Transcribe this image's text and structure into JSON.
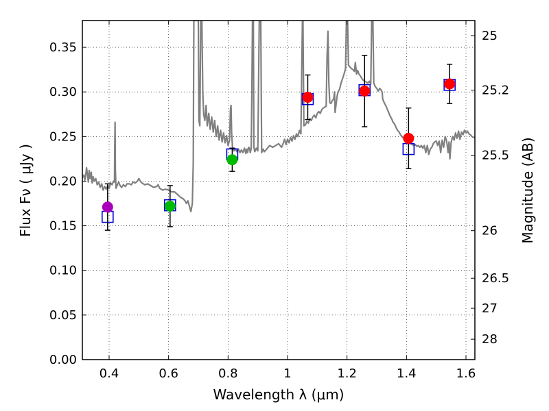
{
  "chart_data": {
    "type": "scatter",
    "xlabel": "Wavelength  λ (μm)",
    "ylabel": "Flux  Fν  ( μJy )",
    "y2label": "Magnitude (AB)",
    "xlim": [
      0.31,
      1.63
    ],
    "ylim": [
      0.0,
      0.38
    ],
    "grid": true,
    "xticks": [
      0.4,
      0.6,
      0.8,
      1.0,
      1.2,
      1.4,
      1.6
    ],
    "xtick_labels": [
      "0.4",
      "0.6",
      "0.8",
      "1",
      "1.2",
      "1.4",
      "1.6"
    ],
    "yticks": [
      0.0,
      0.05,
      0.1,
      0.15,
      0.2,
      0.25,
      0.3,
      0.35
    ],
    "ytick_labels": [
      "0.00",
      "0.05",
      "0.10",
      "0.15",
      "0.20",
      "0.25",
      "0.30",
      "0.35"
    ],
    "mag_ticks": [
      25,
      25.2,
      25.5,
      26,
      26.5,
      27,
      28
    ],
    "mag_tick_labels": [
      "25",
      "25.2",
      "25.5",
      "26",
      "26.5",
      "27",
      "28"
    ],
    "observed": [
      {
        "x": 0.395,
        "y": 0.171,
        "err": 0.026,
        "color": "#aa00bb"
      },
      {
        "x": 0.605,
        "y": 0.172,
        "err": 0.023,
        "color": "#00bb00"
      },
      {
        "x": 0.814,
        "y": 0.224,
        "err": 0.013,
        "color": "#00bb00"
      },
      {
        "x": 1.068,
        "y": 0.294,
        "err": 0.025,
        "color": "#ff0000"
      },
      {
        "x": 1.259,
        "y": 0.301,
        "err": 0.04,
        "color": "#ff0000"
      },
      {
        "x": 1.407,
        "y": 0.248,
        "err": 0.034,
        "color": "#ff0000"
      },
      {
        "x": 1.545,
        "y": 0.309,
        "err": 0.022,
        "color": "#ff0000"
      }
    ],
    "model_photometry": [
      {
        "x": 0.395,
        "y": 0.16
      },
      {
        "x": 0.605,
        "y": 0.173
      },
      {
        "x": 0.814,
        "y": 0.23
      },
      {
        "x": 1.068,
        "y": 0.292
      },
      {
        "x": 1.259,
        "y": 0.302
      },
      {
        "x": 1.407,
        "y": 0.236
      },
      {
        "x": 1.545,
        "y": 0.308
      }
    ],
    "model_spectrum": {
      "color": "#808080",
      "points": [
        [
          0.31,
          0.204
        ],
        [
          0.315,
          0.207
        ],
        [
          0.318,
          0.201
        ],
        [
          0.321,
          0.206
        ],
        [
          0.324,
          0.215
        ],
        [
          0.327,
          0.208
        ],
        [
          0.33,
          0.199
        ],
        [
          0.333,
          0.212
        ],
        [
          0.336,
          0.203
        ],
        [
          0.34,
          0.21
        ],
        [
          0.343,
          0.198
        ],
        [
          0.346,
          0.205
        ],
        [
          0.35,
          0.2
        ],
        [
          0.355,
          0.203
        ],
        [
          0.36,
          0.196
        ],
        [
          0.365,
          0.199
        ],
        [
          0.37,
          0.193
        ],
        [
          0.375,
          0.197
        ],
        [
          0.38,
          0.19
        ],
        [
          0.385,
          0.194
        ],
        [
          0.39,
          0.191
        ],
        [
          0.395,
          0.195
        ],
        [
          0.4,
          0.192
        ],
        [
          0.405,
          0.198
        ],
        [
          0.41,
          0.196
        ],
        [
          0.415,
          0.2
        ],
        [
          0.418,
          0.199
        ],
        [
          0.419,
          0.24
        ],
        [
          0.42,
          0.266
        ],
        [
          0.421,
          0.215
        ],
        [
          0.423,
          0.192
        ],
        [
          0.428,
          0.196
        ],
        [
          0.432,
          0.199
        ],
        [
          0.437,
          0.195
        ],
        [
          0.442,
          0.193
        ],
        [
          0.448,
          0.196
        ],
        [
          0.455,
          0.194
        ],
        [
          0.46,
          0.197
        ],
        [
          0.468,
          0.197
        ],
        [
          0.475,
          0.196
        ],
        [
          0.48,
          0.199
        ],
        [
          0.488,
          0.198
        ],
        [
          0.495,
          0.2
        ],
        [
          0.5,
          0.203
        ],
        [
          0.505,
          0.2
        ],
        [
          0.51,
          0.198
        ],
        [
          0.52,
          0.196
        ],
        [
          0.53,
          0.197
        ],
        [
          0.54,
          0.195
        ],
        [
          0.55,
          0.193
        ],
        [
          0.56,
          0.194
        ],
        [
          0.565,
          0.196
        ],
        [
          0.57,
          0.192
        ],
        [
          0.58,
          0.19
        ],
        [
          0.59,
          0.191
        ],
        [
          0.6,
          0.19
        ],
        [
          0.61,
          0.188
        ],
        [
          0.62,
          0.188
        ],
        [
          0.63,
          0.185
        ],
        [
          0.64,
          0.182
        ],
        [
          0.65,
          0.18
        ],
        [
          0.655,
          0.178
        ],
        [
          0.66,
          0.175
        ],
        [
          0.665,
          0.178
        ],
        [
          0.67,
          0.172
        ],
        [
          0.675,
          0.166
        ],
        [
          0.68,
          0.175
        ],
        [
          0.683,
          0.22
        ],
        [
          0.685,
          0.38
        ],
        [
          0.69,
          0.38
        ],
        [
          0.695,
          0.38
        ],
        [
          0.7,
          0.38
        ],
        [
          0.702,
          0.268
        ],
        [
          0.705,
          0.262
        ],
        [
          0.708,
          0.38
        ],
        [
          0.712,
          0.38
        ],
        [
          0.715,
          0.3
        ],
        [
          0.718,
          0.275
        ],
        [
          0.722,
          0.268
        ],
        [
          0.726,
          0.285
        ],
        [
          0.73,
          0.262
        ],
        [
          0.735,
          0.276
        ],
        [
          0.74,
          0.258
        ],
        [
          0.745,
          0.272
        ],
        [
          0.75,
          0.255
        ],
        [
          0.755,
          0.268
        ],
        [
          0.76,
          0.25
        ],
        [
          0.765,
          0.262
        ],
        [
          0.77,
          0.246
        ],
        [
          0.775,
          0.257
        ],
        [
          0.78,
          0.244
        ],
        [
          0.785,
          0.254
        ],
        [
          0.79,
          0.243
        ],
        [
          0.795,
          0.251
        ],
        [
          0.8,
          0.24
        ],
        [
          0.805,
          0.246
        ],
        [
          0.808,
          0.28
        ],
        [
          0.81,
          0.285
        ],
        [
          0.812,
          0.255
        ],
        [
          0.815,
          0.238
        ],
        [
          0.82,
          0.234
        ],
        [
          0.825,
          0.236
        ],
        [
          0.83,
          0.233
        ],
        [
          0.835,
          0.236
        ],
        [
          0.84,
          0.232
        ],
        [
          0.845,
          0.235
        ],
        [
          0.85,
          0.232
        ],
        [
          0.855,
          0.237
        ],
        [
          0.86,
          0.231
        ],
        [
          0.863,
          0.236
        ],
        [
          0.866,
          0.232
        ],
        [
          0.869,
          0.238
        ],
        [
          0.872,
          0.237
        ],
        [
          0.875,
          0.232
        ],
        [
          0.878,
          0.237
        ],
        [
          0.88,
          0.3
        ],
        [
          0.882,
          0.38
        ],
        [
          0.885,
          0.38
        ],
        [
          0.887,
          0.238
        ],
        [
          0.89,
          0.233
        ],
        [
          0.895,
          0.237
        ],
        [
          0.9,
          0.234
        ],
        [
          0.905,
          0.38
        ],
        [
          0.91,
          0.38
        ],
        [
          0.913,
          0.232
        ],
        [
          0.918,
          0.236
        ],
        [
          0.922,
          0.233
        ],
        [
          0.93,
          0.236
        ],
        [
          0.94,
          0.24
        ],
        [
          0.95,
          0.238
        ],
        [
          0.96,
          0.24
        ],
        [
          0.97,
          0.242
        ],
        [
          0.98,
          0.238
        ],
        [
          0.985,
          0.242
        ],
        [
          0.99,
          0.247
        ],
        [
          0.995,
          0.241
        ],
        [
          1.0,
          0.247
        ],
        [
          1.005,
          0.243
        ],
        [
          1.01,
          0.249
        ],
        [
          1.015,
          0.245
        ],
        [
          1.02,
          0.251
        ],
        [
          1.025,
          0.247
        ],
        [
          1.03,
          0.253
        ],
        [
          1.035,
          0.25
        ],
        [
          1.04,
          0.257
        ],
        [
          1.045,
          0.253
        ],
        [
          1.048,
          0.33
        ],
        [
          1.05,
          0.38
        ],
        [
          1.052,
          0.38
        ],
        [
          1.055,
          0.262
        ],
        [
          1.06,
          0.263
        ],
        [
          1.065,
          0.267
        ],
        [
          1.07,
          0.265
        ],
        [
          1.075,
          0.27
        ],
        [
          1.08,
          0.268
        ],
        [
          1.085,
          0.272
        ],
        [
          1.09,
          0.274
        ],
        [
          1.095,
          0.271
        ],
        [
          1.1,
          0.276
        ],
        [
          1.105,
          0.278
        ],
        [
          1.11,
          0.276
        ],
        [
          1.115,
          0.28
        ],
        [
          1.12,
          0.282
        ],
        [
          1.125,
          0.283
        ],
        [
          1.13,
          0.284
        ],
        [
          1.133,
          0.34
        ],
        [
          1.136,
          0.368
        ],
        [
          1.139,
          0.31
        ],
        [
          1.142,
          0.288
        ],
        [
          1.146,
          0.287
        ],
        [
          1.15,
          0.29
        ],
        [
          1.155,
          0.292
        ],
        [
          1.158,
          0.3
        ],
        [
          1.16,
          0.277
        ],
        [
          1.163,
          0.285
        ],
        [
          1.167,
          0.296
        ],
        [
          1.17,
          0.3
        ],
        [
          1.175,
          0.303
        ],
        [
          1.18,
          0.31
        ],
        [
          1.185,
          0.315
        ],
        [
          1.19,
          0.32
        ],
        [
          1.195,
          0.326
        ],
        [
          1.198,
          0.38
        ],
        [
          1.202,
          0.38
        ],
        [
          1.205,
          0.33
        ],
        [
          1.21,
          0.328
        ],
        [
          1.215,
          0.326
        ],
        [
          1.22,
          0.325
        ],
        [
          1.225,
          0.323
        ],
        [
          1.228,
          0.333
        ],
        [
          1.232,
          0.32
        ],
        [
          1.236,
          0.324
        ],
        [
          1.24,
          0.32
        ],
        [
          1.245,
          0.318
        ],
        [
          1.25,
          0.315
        ],
        [
          1.255,
          0.313
        ],
        [
          1.26,
          0.312
        ],
        [
          1.265,
          0.311
        ],
        [
          1.27,
          0.31
        ],
        [
          1.275,
          0.312
        ],
        [
          1.28,
          0.309
        ],
        [
          1.283,
          0.38
        ],
        [
          1.287,
          0.38
        ],
        [
          1.29,
          0.31
        ],
        [
          1.295,
          0.306
        ],
        [
          1.3,
          0.304
        ],
        [
          1.305,
          0.301
        ],
        [
          1.31,
          0.304
        ],
        [
          1.315,
          0.302
        ],
        [
          1.318,
          0.3
        ],
        [
          1.32,
          0.292
        ],
        [
          1.325,
          0.288
        ],
        [
          1.33,
          0.285
        ],
        [
          1.335,
          0.281
        ],
        [
          1.34,
          0.277
        ],
        [
          1.345,
          0.273
        ],
        [
          1.35,
          0.27
        ],
        [
          1.355,
          0.266
        ],
        [
          1.36,
          0.264
        ],
        [
          1.365,
          0.26
        ],
        [
          1.37,
          0.257
        ],
        [
          1.375,
          0.255
        ],
        [
          1.38,
          0.252
        ],
        [
          1.385,
          0.25
        ],
        [
          1.39,
          0.248
        ],
        [
          1.395,
          0.246
        ],
        [
          1.4,
          0.245
        ],
        [
          1.405,
          0.244
        ],
        [
          1.41,
          0.243
        ],
        [
          1.415,
          0.242
        ],
        [
          1.42,
          0.241
        ],
        [
          1.425,
          0.24
        ],
        [
          1.43,
          0.241
        ],
        [
          1.435,
          0.239
        ],
        [
          1.44,
          0.24
        ],
        [
          1.445,
          0.238
        ],
        [
          1.45,
          0.24
        ],
        [
          1.455,
          0.237
        ],
        [
          1.46,
          0.24
        ],
        [
          1.465,
          0.232
        ],
        [
          1.47,
          0.24
        ],
        [
          1.475,
          0.23
        ],
        [
          1.48,
          0.236
        ],
        [
          1.485,
          0.238
        ],
        [
          1.49,
          0.242
        ],
        [
          1.495,
          0.244
        ],
        [
          1.5,
          0.245
        ],
        [
          1.505,
          0.24
        ],
        [
          1.51,
          0.245
        ],
        [
          1.515,
          0.232
        ],
        [
          1.52,
          0.246
        ],
        [
          1.525,
          0.238
        ],
        [
          1.53,
          0.25
        ],
        [
          1.535,
          0.245
        ],
        [
          1.54,
          0.232
        ],
        [
          1.543,
          0.244
        ],
        [
          1.546,
          0.225
        ],
        [
          1.55,
          0.243
        ],
        [
          1.555,
          0.25
        ],
        [
          1.56,
          0.246
        ],
        [
          1.565,
          0.254
        ],
        [
          1.57,
          0.248
        ],
        [
          1.575,
          0.256
        ],
        [
          1.58,
          0.247
        ],
        [
          1.585,
          0.255
        ],
        [
          1.59,
          0.252
        ],
        [
          1.595,
          0.257
        ],
        [
          1.6,
          0.254
        ],
        [
          1.605,
          0.256
        ],
        [
          1.61,
          0.253
        ],
        [
          1.615,
          0.252
        ],
        [
          1.62,
          0.25
        ],
        [
          1.625,
          0.249
        ],
        [
          1.63,
          0.249
        ]
      ]
    }
  }
}
